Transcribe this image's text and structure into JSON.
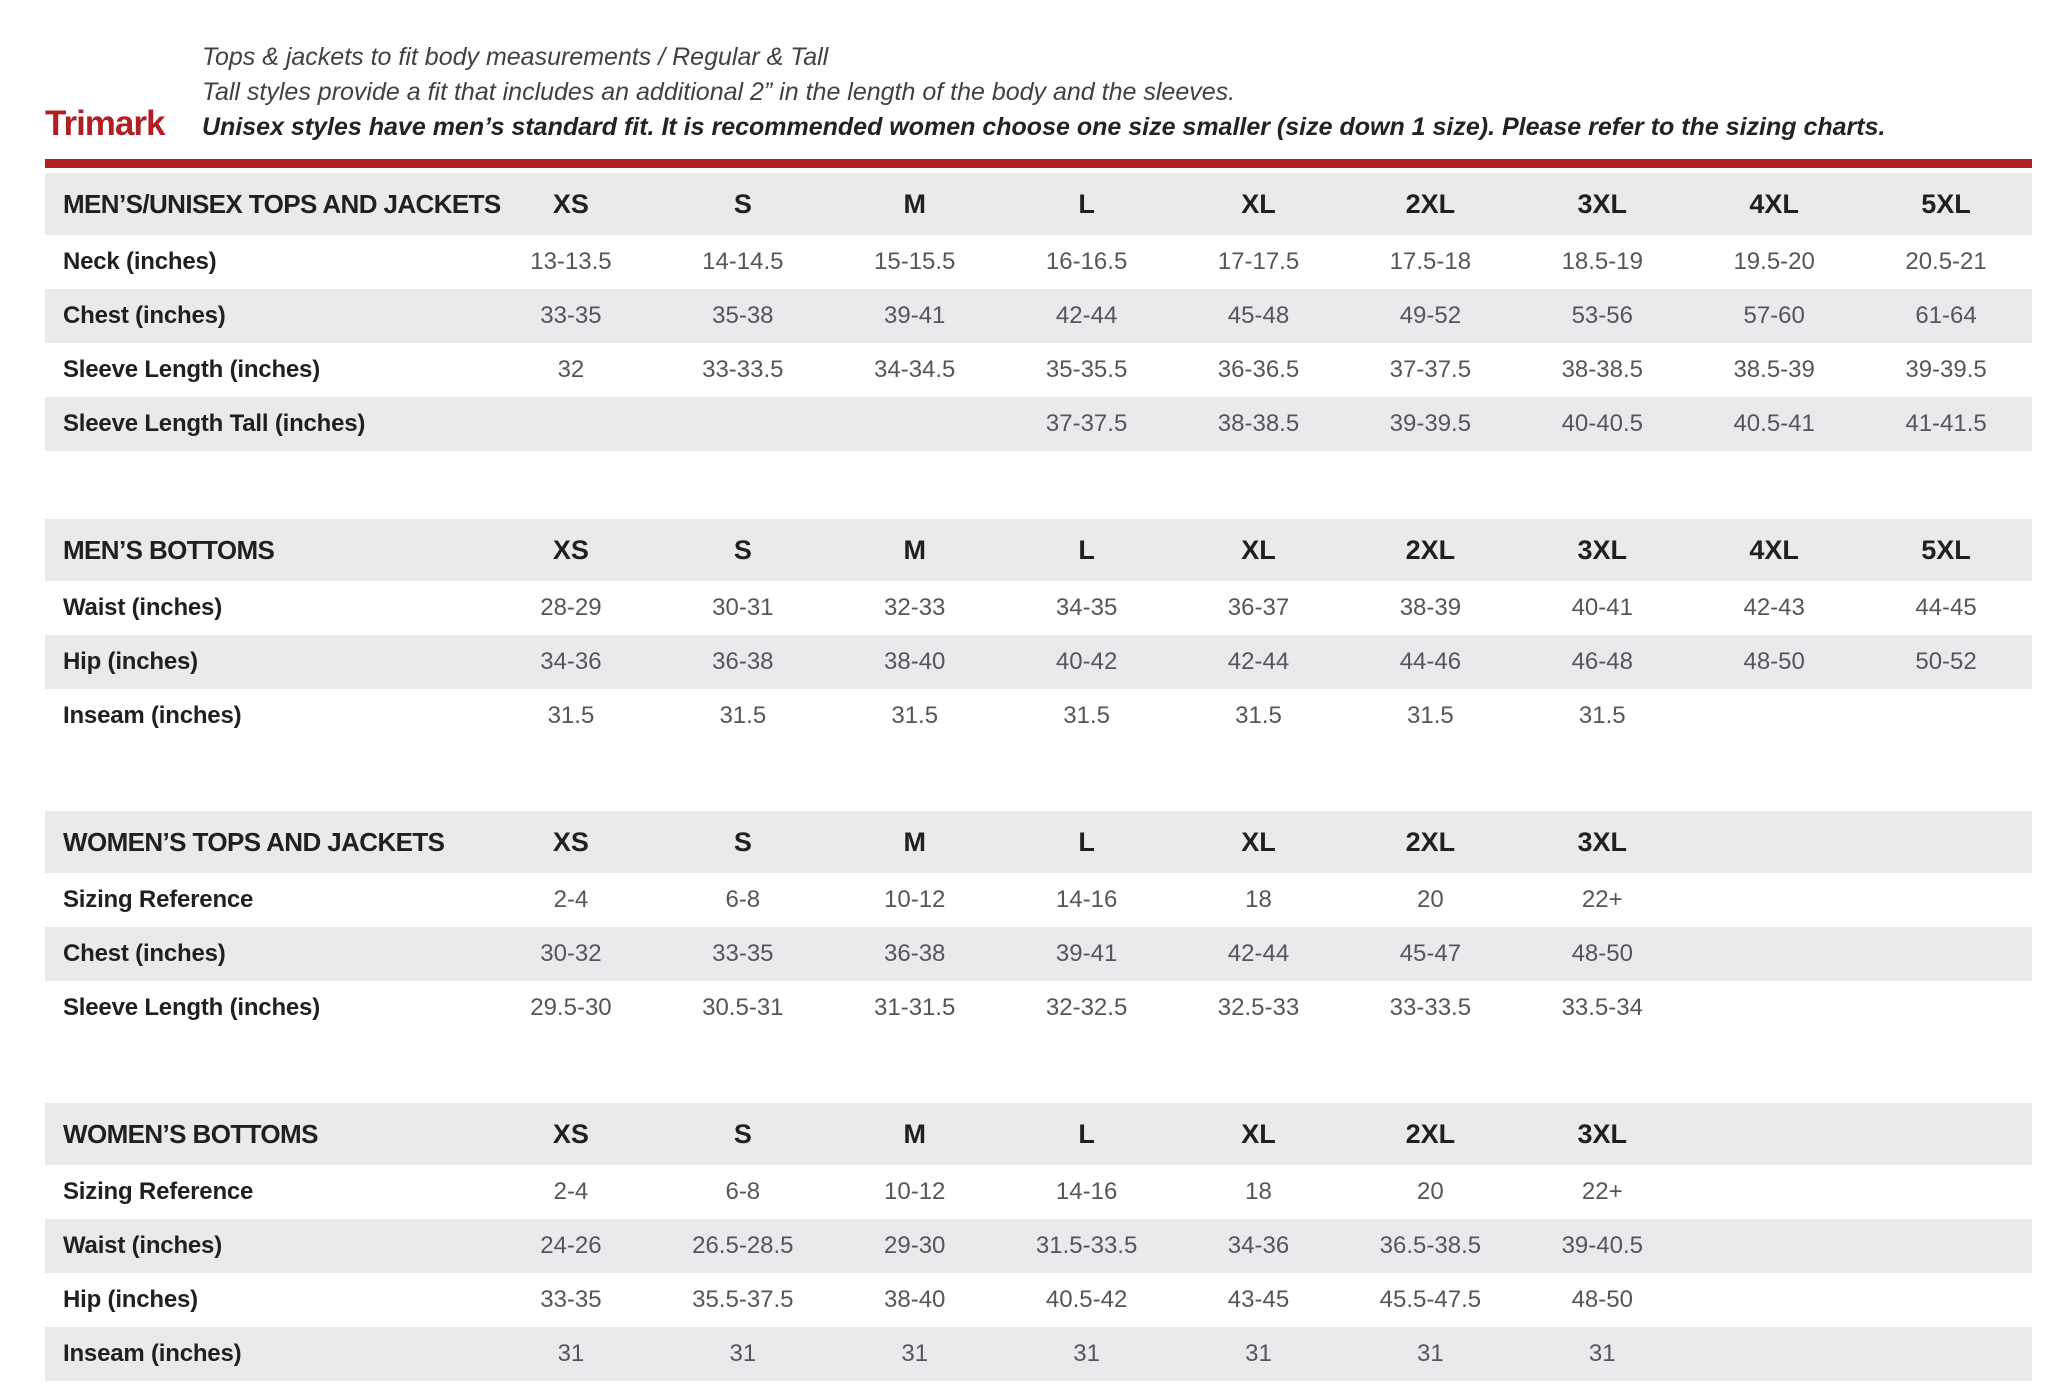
{
  "header": {
    "brand": "Trimark",
    "lines": [
      "Tops & jackets to fit body measurements / Regular & Tall",
      "Tall styles provide a fit that includes an additional 2” in the length of the body and the sleeves.",
      "Unisex styles have men’s standard fit. It is recommended women choose one size smaller (size down 1 size).  Please refer to the sizing charts."
    ],
    "accent_color": "#B01F24",
    "band_color": "#E9EAEB"
  },
  "tables": [
    {
      "title": "MEN’S/UNISEX TOPS AND JACKETS",
      "sizes": [
        "XS",
        "S",
        "M",
        "L",
        "XL",
        "2XL",
        "3XL",
        "4XL",
        "5XL"
      ],
      "rows": [
        {
          "label": "Neck (inches)",
          "values": [
            "13-13.5",
            "14-14.5",
            "15-15.5",
            "16-16.5",
            "17-17.5",
            "17.5-18",
            "18.5-19",
            "19.5-20",
            "20.5-21"
          ]
        },
        {
          "label": "Chest (inches)",
          "values": [
            "33-35",
            "35-38",
            "39-41",
            "42-44",
            "45-48",
            "49-52",
            "53-56",
            "57-60",
            "61-64"
          ]
        },
        {
          "label": "Sleeve Length (inches)",
          "values": [
            "32",
            "33-33.5",
            "34-34.5",
            "35-35.5",
            "36-36.5",
            "37-37.5",
            "38-38.5",
            "38.5-39",
            "39-39.5"
          ]
        },
        {
          "label": "Sleeve Length Tall (inches)",
          "values": [
            "",
            "",
            "",
            "37-37.5",
            "38-38.5",
            "39-39.5",
            "40-40.5",
            "40.5-41",
            "41-41.5"
          ]
        }
      ]
    },
    {
      "title": "MEN’S BOTTOMS",
      "sizes": [
        "XS",
        "S",
        "M",
        "L",
        "XL",
        "2XL",
        "3XL",
        "4XL",
        "5XL"
      ],
      "rows": [
        {
          "label": "Waist (inches)",
          "values": [
            "28-29",
            "30-31",
            "32-33",
            "34-35",
            "36-37",
            "38-39",
            "40-41",
            "42-43",
            "44-45"
          ]
        },
        {
          "label": "Hip (inches)",
          "values": [
            "34-36",
            "36-38",
            "38-40",
            "40-42",
            "42-44",
            "44-46",
            "46-48",
            "48-50",
            "50-52"
          ]
        },
        {
          "label": "Inseam (inches)",
          "values": [
            "31.5",
            "31.5",
            "31.5",
            "31.5",
            "31.5",
            "31.5",
            "31.5",
            "",
            ""
          ]
        }
      ]
    },
    {
      "title": "WOMEN’S TOPS AND JACKETS",
      "sizes": [
        "XS",
        "S",
        "M",
        "L",
        "XL",
        "2XL",
        "3XL"
      ],
      "rows": [
        {
          "label": "Sizing Reference",
          "values": [
            "2-4",
            "6-8",
            "10-12",
            "14-16",
            "18",
            "20",
            "22+"
          ]
        },
        {
          "label": "Chest (inches)",
          "values": [
            "30-32",
            "33-35",
            "36-38",
            "39-41",
            "42-44",
            "45-47",
            "48-50"
          ]
        },
        {
          "label": "Sleeve Length (inches)",
          "values": [
            "29.5-30",
            "30.5-31",
            "31-31.5",
            "32-32.5",
            "32.5-33",
            "33-33.5",
            "33.5-34"
          ]
        }
      ]
    },
    {
      "title": "WOMEN’S BOTTOMS",
      "sizes": [
        "XS",
        "S",
        "M",
        "L",
        "XL",
        "2XL",
        "3XL"
      ],
      "rows": [
        {
          "label": "Sizing Reference",
          "values": [
            "2-4",
            "6-8",
            "10-12",
            "14-16",
            "18",
            "20",
            "22+"
          ]
        },
        {
          "label": "Waist (inches)",
          "values": [
            "24-26",
            "26.5-28.5",
            "29-30",
            "31.5-33.5",
            "34-36",
            "36.5-38.5",
            "39-40.5"
          ]
        },
        {
          "label": "Hip (inches)",
          "values": [
            "33-35",
            "35.5-37.5",
            "38-40",
            "40.5-42",
            "43-45",
            "45.5-47.5",
            "48-50"
          ]
        },
        {
          "label": "Inseam (inches)",
          "values": [
            "31",
            "31",
            "31",
            "31",
            "31",
            "31",
            "31"
          ]
        }
      ]
    }
  ]
}
